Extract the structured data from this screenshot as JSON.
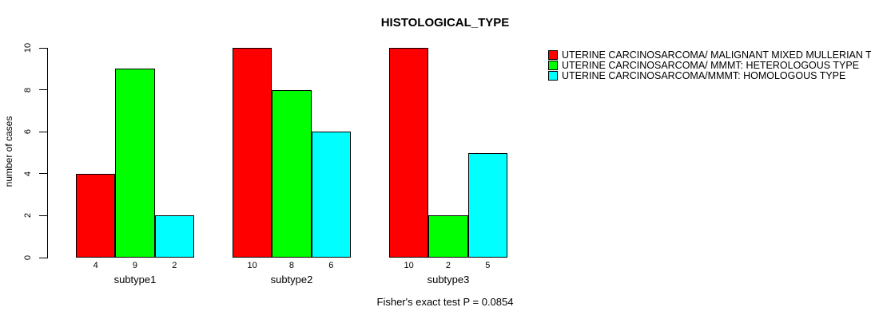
{
  "chart_data": {
    "type": "bar",
    "title": "HISTOLOGICAL_TYPE",
    "ylabel": "number of cases",
    "xlabel": "",
    "ylim": [
      0,
      10
    ],
    "yticks": [
      0,
      2,
      4,
      6,
      8,
      10
    ],
    "grid": false,
    "legend_position": "right",
    "bar_value_labels_shown": true,
    "annotation": "Fisher's exact test P = 0.0854",
    "categories": [
      "subtype1",
      "subtype2",
      "subtype3"
    ],
    "series": [
      {
        "name": "UTERINE CARCINOSARCOMA/ MALIGNANT MIXED MULLERIAN TU",
        "color": "#ff0000",
        "values": [
          4,
          10,
          10
        ]
      },
      {
        "name": "UTERINE CARCINOSARCOMA/ MMMT: HETEROLOGOUS TYPE",
        "color": "#00ff00",
        "values": [
          9,
          8,
          2
        ]
      },
      {
        "name": "UTERINE CARCINOSARCOMA/MMMT: HOMOLOGOUS TYPE",
        "color": "#00ffff",
        "values": [
          2,
          6,
          5
        ]
      }
    ],
    "axis_color": "#000000"
  }
}
